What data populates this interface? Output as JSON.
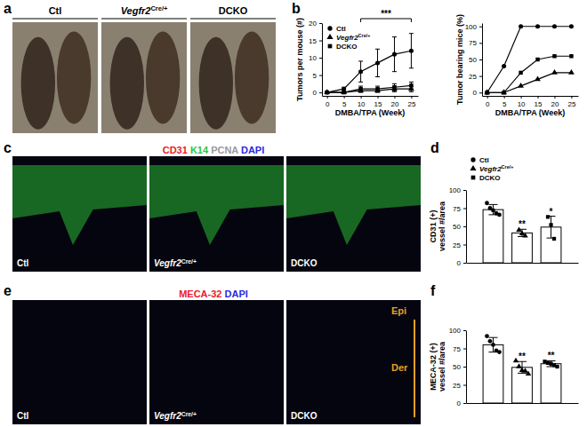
{
  "figure": {
    "panels": [
      "a",
      "b",
      "c",
      "d",
      "e",
      "f"
    ],
    "photo_labels": [
      "Ctl",
      "Vegfr2Cre/+",
      "DCKO"
    ],
    "stain_c": [
      {
        "text": "CD31",
        "color": "#e8202a"
      },
      {
        "text": "K14",
        "color": "#2fc43a"
      },
      {
        "text": "PCNA",
        "color": "#9a9a9a"
      },
      {
        "text": "DAPI",
        "color": "#2a2ae0"
      }
    ],
    "stain_e": [
      {
        "text": "MECA-32",
        "color": "#e8202a"
      },
      {
        "text": "DAPI",
        "color": "#2a2ae0"
      }
    ],
    "layer_labels": [
      "Epi",
      "Der"
    ]
  },
  "chart_data": [
    {
      "type": "line",
      "xlabel": "DMBA/TPA (Week)",
      "ylabel": "Tumors per mouse (#)",
      "x": [
        0,
        5,
        10,
        15,
        20,
        25
      ],
      "xlim": [
        -1.5,
        27
      ],
      "xticks": [
        0,
        5,
        10,
        15,
        20,
        25
      ],
      "ylim": [
        -1,
        20
      ],
      "yticks": [
        0,
        5,
        10,
        15,
        20
      ],
      "legend": "top-left",
      "annotations": [
        {
          "text": "***",
          "x": [
            10,
            25
          ]
        }
      ],
      "series": [
        {
          "name": "Ctl",
          "color": "#000000",
          "marker": "circle",
          "values": [
            0,
            1,
            6,
            8.5,
            11,
            12
          ],
          "errors": [
            0,
            0.5,
            3,
            4,
            5,
            5
          ]
        },
        {
          "name": "Vegfr2Cre/+",
          "color": "#000000",
          "marker": "triangle",
          "values": [
            0,
            0,
            0.5,
            0.5,
            1,
            1
          ],
          "errors": [
            0,
            0,
            0.5,
            0.5,
            0.8,
            0.8
          ]
        },
        {
          "name": "DCKO",
          "color": "#000000",
          "marker": "square",
          "values": [
            0,
            0,
            1,
            1,
            1.5,
            2
          ],
          "errors": [
            0,
            0,
            0.8,
            0.8,
            1,
            1
          ]
        }
      ]
    },
    {
      "type": "line",
      "xlabel": "DMBA/TPA (Week)",
      "ylabel": "Tumor bearing mice (%)",
      "x": [
        0,
        5,
        10,
        15,
        20,
        25
      ],
      "xlim": [
        -1.5,
        27
      ],
      "xticks": [
        0,
        5,
        10,
        15,
        20,
        25
      ],
      "ylim": [
        -5,
        105
      ],
      "yticks": [
        0,
        25,
        50,
        75,
        100
      ],
      "series": [
        {
          "color": "#000000",
          "marker": "circle",
          "values": [
            0,
            40,
            100,
            100,
            100,
            100
          ]
        },
        {
          "color": "#000000",
          "marker": "triangle",
          "values": [
            0,
            0,
            10,
            20,
            30,
            30
          ]
        },
        {
          "color": "#000000",
          "marker": "square",
          "values": [
            0,
            0,
            30,
            50,
            55,
            55
          ]
        }
      ]
    },
    {
      "type": "bar",
      "ylabel": [
        "CD31 (+)",
        "vessel #/area"
      ],
      "categories": [
        null
      ],
      "ylim": [
        0,
        100
      ],
      "yticks": [
        0,
        25,
        50,
        75,
        100
      ],
      "tick_labels": "y",
      "legend": "top",
      "series": [
        {
          "name": "Ctl",
          "color": "#ffffff",
          "marker": "circle",
          "values": [
            73
          ],
          "errors": [
            7
          ],
          "points": [
            [
              82,
              75,
              72,
              68,
              66
            ]
          ]
        },
        {
          "name": "Vegfr2Cre/+",
          "color": "#ffffff",
          "marker": "triangle",
          "values": [
            41
          ],
          "errors": [
            5
          ],
          "points": [
            [
              45,
              40,
              37
            ]
          ],
          "annotations": [
            "**"
          ]
        },
        {
          "name": "DCKO",
          "color": "#ffffff",
          "marker": "square",
          "values": [
            49
          ],
          "errors": [
            15
          ],
          "points": [
            [
              63,
              52,
              33
            ]
          ],
          "annotations": [
            "*"
          ]
        }
      ]
    },
    {
      "type": "bar",
      "ylabel": [
        "MECA-32 (+)",
        "vessel #/area"
      ],
      "categories": [
        null
      ],
      "ylim": [
        0,
        100
      ],
      "yticks": [
        0,
        25,
        50,
        75,
        100
      ],
      "tick_labels": "y",
      "series": [
        {
          "color": "#ffffff",
          "marker": "circle",
          "values": [
            80
          ],
          "errors": [
            10
          ],
          "points": [
            [
              92,
              85,
              80,
              72,
              70
            ]
          ]
        },
        {
          "color": "#ffffff",
          "marker": "triangle",
          "values": [
            49
          ],
          "errors": [
            8
          ],
          "points": [
            [
              58,
              50,
              45,
              44,
              40
            ]
          ],
          "annotations": [
            "**"
          ]
        },
        {
          "color": "#ffffff",
          "marker": "square",
          "values": [
            54
          ],
          "errors": [
            4
          ],
          "points": [
            [
              57,
              55,
              54,
              52,
              50
            ]
          ],
          "annotations": [
            "**"
          ]
        }
      ]
    }
  ]
}
